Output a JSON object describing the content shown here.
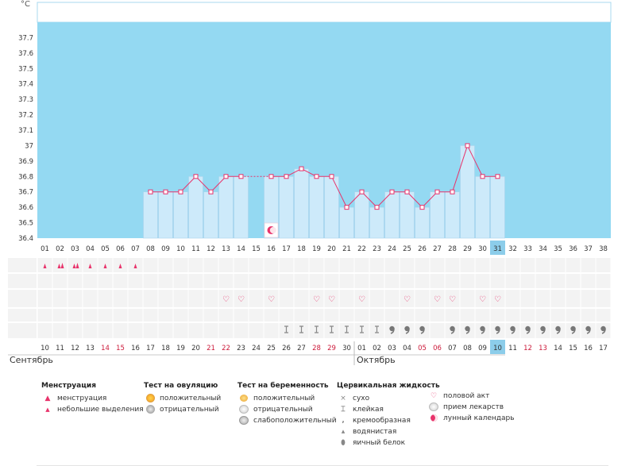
{
  "chart_data": {
    "type": "line",
    "ylabel": "°C",
    "ylim": [
      36.4,
      37.8
    ],
    "yticks": [
      "37.7",
      "37.6",
      "37.5",
      "37.4",
      "37.3",
      "37.2",
      "37.1",
      "37",
      "36.9",
      "36.8",
      "36.7",
      "36.6",
      "36.5",
      "36.4"
    ],
    "cycle_days": [
      "01",
      "02",
      "03",
      "04",
      "05",
      "06",
      "07",
      "08",
      "09",
      "10",
      "11",
      "12",
      "13",
      "14",
      "15",
      "16",
      "17",
      "18",
      "19",
      "20",
      "21",
      "22",
      "23",
      "24",
      "25",
      "26",
      "27",
      "28",
      "29",
      "30",
      "31",
      "32",
      "33",
      "34",
      "35",
      "36",
      "37",
      "38"
    ],
    "current_cycle_day": "31",
    "temperatures": [
      null,
      null,
      null,
      null,
      null,
      null,
      null,
      36.7,
      36.7,
      36.7,
      36.8,
      36.7,
      36.8,
      36.8,
      null,
      36.8,
      36.8,
      36.85,
      36.8,
      36.8,
      36.6,
      36.7,
      36.6,
      36.7,
      36.7,
      36.6,
      36.7,
      36.7,
      37.0,
      36.8,
      36.8,
      null,
      null,
      null,
      null,
      null,
      null,
      null
    ],
    "dates": [
      "10",
      "11",
      "12",
      "13",
      "14",
      "15",
      "16",
      "17",
      "18",
      "19",
      "20",
      "21",
      "22",
      "23",
      "24",
      "25",
      "26",
      "27",
      "28",
      "29",
      "30",
      "01",
      "02",
      "03",
      "04",
      "05",
      "06",
      "07",
      "08",
      "09",
      "10",
      "11",
      "12",
      "13",
      "14",
      "15",
      "16",
      "17"
    ],
    "red_date_indices": [
      4,
      5,
      11,
      12,
      18,
      19,
      25,
      26,
      32,
      33
    ],
    "today_index": 30,
    "months": [
      "Сентябрь",
      "Октябрь"
    ],
    "moon_day_index": 15,
    "menstruation_marks": [
      "flow",
      "heavy",
      "heavy",
      "flow",
      "flow",
      "flow",
      "flow"
    ],
    "intercourse_day_indices": [
      12,
      13,
      15,
      18,
      19,
      21,
      24,
      26,
      27,
      29,
      30
    ],
    "cervical_fluid": [
      "",
      "",
      "",
      "",
      "",
      "",
      "",
      "",
      "",
      "",
      "",
      "",
      "",
      "",
      "",
      "",
      "sticky",
      "sticky",
      "sticky",
      "sticky",
      "sticky",
      "sticky",
      "sticky",
      "creamy",
      "creamy",
      "creamy",
      "",
      "creamy",
      "creamy",
      "creamy",
      "creamy",
      "creamy",
      "creamy",
      "creamy",
      "creamy",
      "creamy",
      "creamy",
      "creamy"
    ]
  },
  "legend": {
    "menstruation": {
      "title": "Менструация",
      "items": [
        "менструация",
        "небольшие выделения"
      ]
    },
    "ovulation": {
      "title": "Тест на овуляцию",
      "items": [
        "положительный",
        "отрицательный"
      ]
    },
    "pregnancy": {
      "title": "Тест на беременность",
      "items": [
        "положительный",
        "отрицательный",
        "слабоположительный"
      ]
    },
    "cervical": {
      "title": "Цервикальная жидкость",
      "items": [
        "сухо",
        "клейкая",
        "кремообразная",
        "водянистая",
        "яичный белок"
      ]
    },
    "other": {
      "items": [
        "половой акт",
        "прием лекарств",
        "лунный календарь"
      ]
    }
  },
  "colors": {
    "sky": "#94d9f2",
    "bar": "#cdeafa",
    "bar_edge": "#a8d3ec",
    "line": "#e8336b",
    "today": "#8ccdea",
    "grid": "#f3f3f3"
  }
}
